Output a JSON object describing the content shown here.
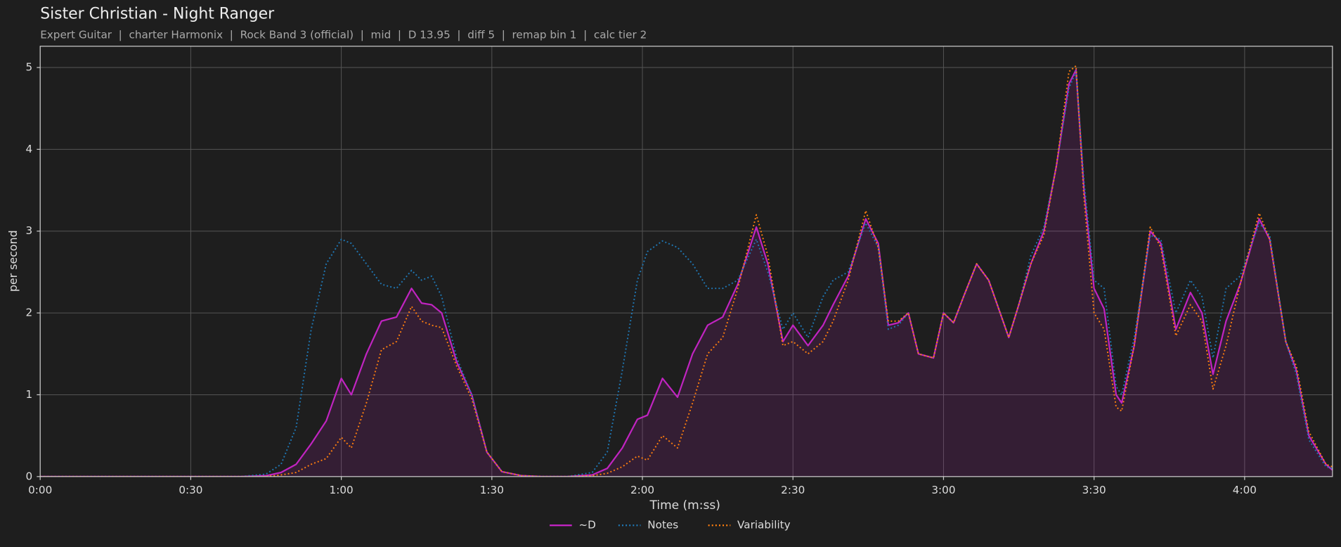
{
  "chart_data": {
    "type": "line",
    "title": "Sister Christian - Night Ranger",
    "subtitle": "Expert Guitar  |  charter Harmonix  |  Rock Band 3 (official)  |  mid  |  D 13.95  |  diff 5  |  remap bin 1  |  calc tier 2",
    "x_label": "Time (m:ss)",
    "y_label": "per second",
    "x": [
      0,
      20,
      40,
      45,
      48,
      51,
      54,
      57,
      60,
      62,
      65,
      68,
      71,
      74,
      76,
      78,
      80,
      83,
      86,
      89,
      92,
      96,
      100,
      105,
      110,
      113,
      116,
      119,
      121,
      124,
      127,
      130,
      133,
      136,
      139,
      142.7,
      145,
      148,
      150,
      153,
      156,
      158,
      161,
      164.5,
      167,
      169,
      171,
      173,
      175,
      178,
      180,
      182,
      184,
      186.6,
      189,
      193,
      195,
      197.4,
      200,
      202.5,
      205,
      206.4,
      208,
      210,
      212,
      214.4,
      215.5,
      218,
      221.2,
      223.3,
      226.3,
      229.2,
      231.5,
      233.7,
      236.3,
      239.1,
      242.9,
      245,
      248.2,
      250.3,
      252.8,
      256.2,
      257.5
    ],
    "series": [
      {
        "name": "~D",
        "color": "#c124c1",
        "style": "solid",
        "area": true,
        "values": [
          0,
          0,
          0,
          0.01,
          0.05,
          0.15,
          0.4,
          0.68,
          1.2,
          1.0,
          1.5,
          1.9,
          1.95,
          2.3,
          2.12,
          2.1,
          2.0,
          1.4,
          1.0,
          0.3,
          0.06,
          0.01,
          0,
          0,
          0.02,
          0.1,
          0.35,
          0.7,
          0.75,
          1.2,
          0.97,
          1.5,
          1.85,
          1.95,
          2.35,
          3.05,
          2.6,
          1.65,
          1.85,
          1.6,
          1.85,
          2.1,
          2.45,
          3.15,
          2.85,
          1.85,
          1.88,
          2.0,
          1.5,
          1.45,
          2.0,
          1.88,
          2.2,
          2.6,
          2.4,
          1.7,
          2.1,
          2.6,
          3.0,
          3.8,
          4.8,
          4.97,
          3.5,
          2.3,
          2.05,
          1.0,
          0.9,
          1.6,
          3.0,
          2.85,
          1.8,
          2.25,
          2.0,
          1.25,
          1.9,
          2.35,
          3.15,
          2.9,
          1.65,
          1.3,
          0.5,
          0.15,
          0.08
        ]
      },
      {
        "name": "Notes",
        "color": "#1f77b4",
        "style": "dotted",
        "values": [
          0,
          0,
          0,
          0.03,
          0.15,
          0.6,
          1.8,
          2.6,
          2.9,
          2.85,
          2.6,
          2.35,
          2.3,
          2.52,
          2.4,
          2.45,
          2.2,
          1.45,
          1.0,
          0.3,
          0.06,
          0.01,
          0,
          0,
          0.05,
          0.3,
          1.3,
          2.4,
          2.75,
          2.88,
          2.8,
          2.6,
          2.3,
          2.3,
          2.4,
          2.9,
          2.5,
          1.8,
          2.0,
          1.7,
          2.2,
          2.4,
          2.5,
          3.1,
          2.8,
          1.8,
          1.85,
          2.0,
          1.5,
          1.45,
          2.0,
          1.88,
          2.2,
          2.6,
          2.4,
          1.7,
          2.1,
          2.7,
          3.05,
          3.8,
          4.75,
          4.95,
          3.6,
          2.4,
          2.3,
          1.1,
          1.0,
          1.7,
          2.95,
          2.9,
          2.0,
          2.4,
          2.2,
          1.45,
          2.3,
          2.45,
          3.1,
          2.95,
          1.65,
          1.25,
          0.45,
          0.12,
          0.1
        ]
      },
      {
        "name": "Variability",
        "color": "#ff7f0e",
        "style": "dotted",
        "values": [
          0,
          0,
          0,
          0,
          0.02,
          0.05,
          0.15,
          0.22,
          0.48,
          0.35,
          0.9,
          1.55,
          1.65,
          2.08,
          1.9,
          1.85,
          1.82,
          1.35,
          0.95,
          0.3,
          0.06,
          0.01,
          0,
          0,
          0.01,
          0.04,
          0.12,
          0.25,
          0.2,
          0.5,
          0.35,
          0.9,
          1.5,
          1.7,
          2.3,
          3.2,
          2.7,
          1.6,
          1.65,
          1.5,
          1.65,
          1.9,
          2.4,
          3.25,
          2.8,
          1.9,
          1.9,
          2.0,
          1.5,
          1.45,
          2.0,
          1.88,
          2.2,
          2.6,
          2.4,
          1.7,
          2.1,
          2.6,
          2.95,
          3.8,
          4.95,
          5.02,
          3.4,
          2.0,
          1.8,
          0.85,
          0.8,
          1.6,
          3.05,
          2.8,
          1.72,
          2.1,
          1.9,
          1.07,
          1.6,
          2.35,
          3.22,
          2.9,
          1.65,
          1.35,
          0.55,
          0.15,
          0.12
        ]
      }
    ],
    "xlim": [
      0,
      257.5
    ],
    "ylim": [
      0,
      5.26
    ],
    "xticks": [
      {
        "value": 0,
        "label": "0:00"
      },
      {
        "value": 30,
        "label": "0:30"
      },
      {
        "value": 60,
        "label": "1:00"
      },
      {
        "value": 90,
        "label": "1:30"
      },
      {
        "value": 120,
        "label": "2:00"
      },
      {
        "value": 150,
        "label": "2:30"
      },
      {
        "value": 180,
        "label": "3:00"
      },
      {
        "value": 210,
        "label": "3:30"
      },
      {
        "value": 240,
        "label": "4:00"
      }
    ],
    "yticks": [
      0,
      1,
      2,
      3,
      4,
      5
    ],
    "grid": true,
    "legend": "lower center"
  }
}
